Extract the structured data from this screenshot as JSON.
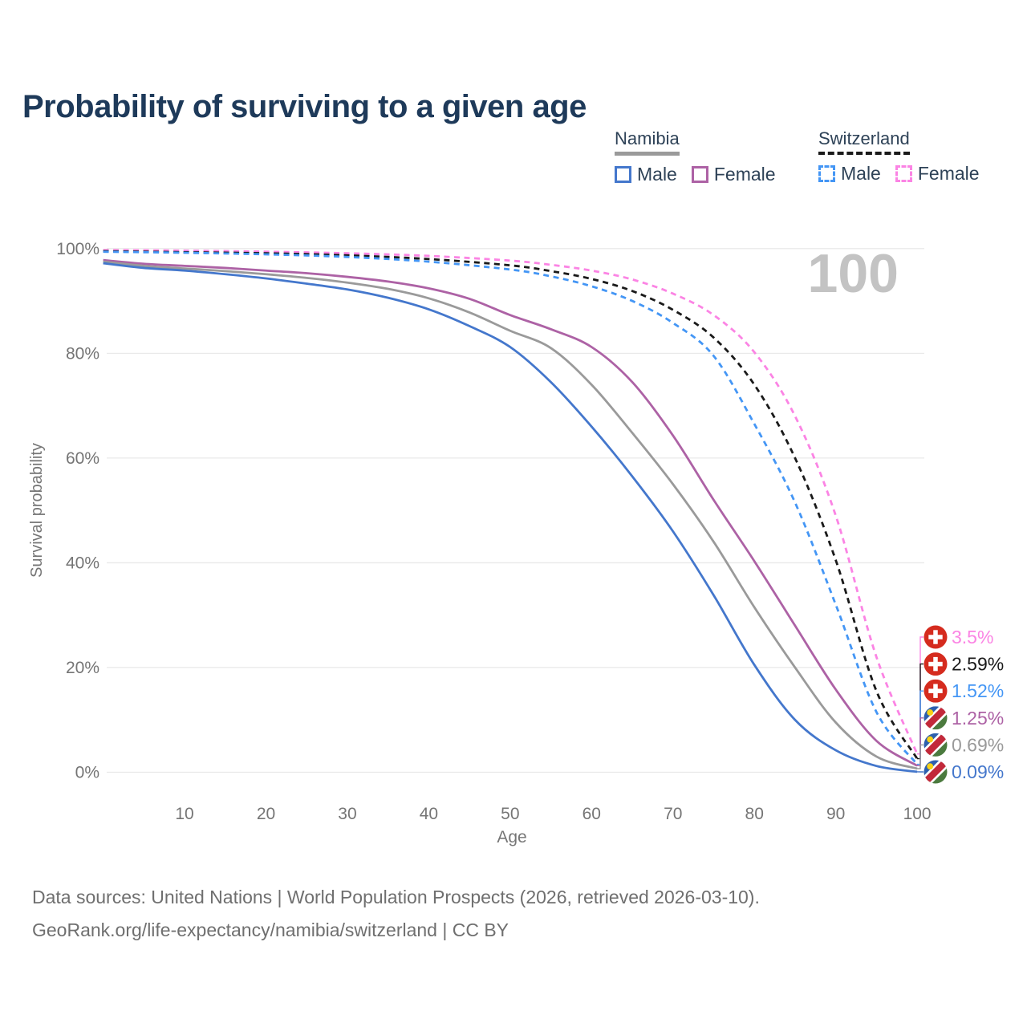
{
  "title": "Probability of surviving to a given age",
  "legend": {
    "groups": [
      {
        "label": "Namibia",
        "line_style": "solid",
        "line_color": "#9a9a9a",
        "items": [
          {
            "label": "Male",
            "color": "#4477cc",
            "dash": false
          },
          {
            "label": "Female",
            "color": "#ad62a5",
            "dash": false
          }
        ]
      },
      {
        "label": "Switzerland",
        "line_style": "dashed",
        "line_color": "#1a1a1a",
        "items": [
          {
            "label": "Male",
            "color": "#4496f5",
            "dash": true
          },
          {
            "label": "Female",
            "color": "#fb84e4",
            "dash": true
          }
        ]
      }
    ]
  },
  "watermark": "100",
  "chart_data": {
    "type": "line",
    "title": "Probability of surviving to a given age",
    "xlabel": "Age",
    "ylabel": "Survival probability",
    "xlim": [
      0,
      100
    ],
    "ylim": [
      0,
      100
    ],
    "xticks": [
      10,
      20,
      30,
      40,
      50,
      60,
      70,
      80,
      90,
      100
    ],
    "yticks": [
      0,
      20,
      40,
      60,
      80,
      100
    ],
    "ytick_suffix": "%",
    "grid": "horizontal",
    "legend_position": "top-right",
    "series": [
      {
        "name": "Switzerland Female",
        "country": "Switzerland",
        "sex": "Female",
        "color": "#fb84e4",
        "dash": true,
        "flag": "swiss",
        "final_label": "3.5%",
        "points": [
          [
            0,
            99.7
          ],
          [
            10,
            99.6
          ],
          [
            20,
            99.4
          ],
          [
            30,
            99.1
          ],
          [
            40,
            98.6
          ],
          [
            50,
            97.7
          ],
          [
            55,
            96.9
          ],
          [
            60,
            95.8
          ],
          [
            65,
            94.1
          ],
          [
            70,
            91.4
          ],
          [
            75,
            87.3
          ],
          [
            80,
            80.2
          ],
          [
            85,
            68.0
          ],
          [
            90,
            49.0
          ],
          [
            95,
            22.0
          ],
          [
            100,
            3.5
          ]
        ]
      },
      {
        "name": "Switzerland Both sexes",
        "country": "Switzerland",
        "sex": "Both",
        "color": "#1a1a1a",
        "dash": true,
        "flag": "swiss",
        "final_label": "2.59%",
        "points": [
          [
            0,
            99.5
          ],
          [
            10,
            99.3
          ],
          [
            20,
            99.1
          ],
          [
            30,
            98.7
          ],
          [
            40,
            98.0
          ],
          [
            50,
            96.8
          ],
          [
            55,
            95.7
          ],
          [
            60,
            94.2
          ],
          [
            65,
            91.9
          ],
          [
            70,
            88.3
          ],
          [
            75,
            83.0
          ],
          [
            80,
            74.0
          ],
          [
            85,
            60.0
          ],
          [
            90,
            40.5
          ],
          [
            95,
            15.5
          ],
          [
            100,
            2.59
          ]
        ]
      },
      {
        "name": "Switzerland Male",
        "country": "Switzerland",
        "sex": "Male",
        "color": "#4496f5",
        "dash": true,
        "flag": "swiss",
        "final_label": "1.52%",
        "points": [
          [
            0,
            99.4
          ],
          [
            10,
            99.2
          ],
          [
            20,
            98.9
          ],
          [
            30,
            98.4
          ],
          [
            40,
            97.5
          ],
          [
            50,
            96.0
          ],
          [
            55,
            94.7
          ],
          [
            60,
            92.8
          ],
          [
            65,
            90.0
          ],
          [
            70,
            85.8
          ],
          [
            75,
            79.5
          ],
          [
            80,
            66.5
          ],
          [
            85,
            51.5
          ],
          [
            90,
            32.0
          ],
          [
            95,
            11.5
          ],
          [
            100,
            1.52
          ]
        ]
      },
      {
        "name": "Namibia Female",
        "country": "Namibia",
        "sex": "Female",
        "color": "#ad62a5",
        "dash": false,
        "flag": "namibia",
        "final_label": "1.25%",
        "points": [
          [
            0,
            97.8
          ],
          [
            5,
            97.1
          ],
          [
            10,
            96.7
          ],
          [
            15,
            96.3
          ],
          [
            20,
            95.8
          ],
          [
            25,
            95.3
          ],
          [
            30,
            94.6
          ],
          [
            35,
            93.7
          ],
          [
            40,
            92.4
          ],
          [
            45,
            90.4
          ],
          [
            50,
            87.3
          ],
          [
            55,
            84.6
          ],
          [
            60,
            81.2
          ],
          [
            65,
            74.5
          ],
          [
            70,
            64.3
          ],
          [
            75,
            52.0
          ],
          [
            80,
            40.3
          ],
          [
            85,
            28.0
          ],
          [
            90,
            15.8
          ],
          [
            95,
            6.0
          ],
          [
            100,
            1.25
          ]
        ]
      },
      {
        "name": "Namibia Both sexes",
        "country": "Namibia",
        "sex": "Both",
        "color": "#9a9a9a",
        "dash": false,
        "flag": "namibia",
        "final_label": "0.69%",
        "points": [
          [
            0,
            97.5
          ],
          [
            5,
            96.7
          ],
          [
            10,
            96.2
          ],
          [
            15,
            95.7
          ],
          [
            20,
            95.1
          ],
          [
            25,
            94.4
          ],
          [
            30,
            93.5
          ],
          [
            35,
            92.3
          ],
          [
            40,
            90.5
          ],
          [
            45,
            87.8
          ],
          [
            50,
            84.3
          ],
          [
            55,
            81.0
          ],
          [
            60,
            74.0
          ],
          [
            65,
            64.8
          ],
          [
            70,
            55.0
          ],
          [
            75,
            44.0
          ],
          [
            80,
            31.5
          ],
          [
            85,
            20.0
          ],
          [
            90,
            9.5
          ],
          [
            95,
            3.0
          ],
          [
            100,
            0.69
          ]
        ]
      },
      {
        "name": "Namibia Male",
        "country": "Namibia",
        "sex": "Male",
        "color": "#4477cc",
        "dash": false,
        "flag": "namibia",
        "final_label": "0.09%",
        "points": [
          [
            0,
            97.2
          ],
          [
            5,
            96.3
          ],
          [
            10,
            95.8
          ],
          [
            15,
            95.1
          ],
          [
            20,
            94.3
          ],
          [
            25,
            93.3
          ],
          [
            30,
            92.2
          ],
          [
            35,
            90.6
          ],
          [
            40,
            88.4
          ],
          [
            45,
            85.2
          ],
          [
            50,
            81.2
          ],
          [
            55,
            74.5
          ],
          [
            60,
            66.0
          ],
          [
            65,
            56.5
          ],
          [
            70,
            46.0
          ],
          [
            75,
            33.8
          ],
          [
            80,
            20.5
          ],
          [
            85,
            10.0
          ],
          [
            90,
            4.2
          ],
          [
            95,
            1.2
          ],
          [
            100,
            0.09
          ]
        ]
      }
    ]
  },
  "footer": {
    "line1": "Data sources: United Nations | World Population Prospects (2026, retrieved 2026-03-10).",
    "line2": "GeoRank.org/life-expectancy/namibia/switzerland | CC BY"
  },
  "colors": {
    "title": "#1e3a5a",
    "axis_text": "#757575",
    "gridline": "#e9e9e9",
    "watermark": "#c3c3c3",
    "footer_text": "#6f6f6f",
    "swiss_flag_red": "#d52b1e",
    "namibia_blue": "#2d5fae",
    "namibia_red": "#c2293a",
    "namibia_green": "#4b7a3e",
    "namibia_sun": "#f7d116"
  }
}
